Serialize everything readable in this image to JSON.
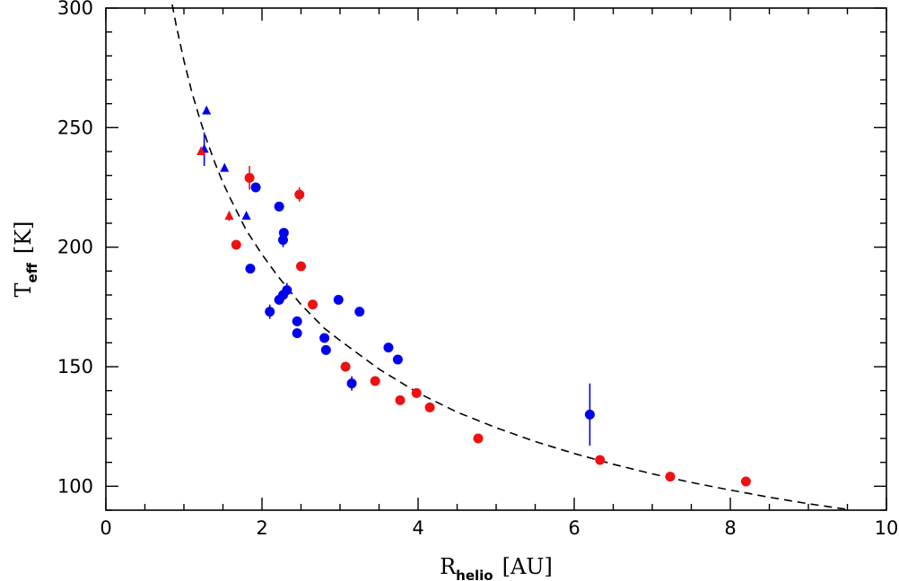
{
  "chart_data": {
    "type": "scatter",
    "title": "",
    "xlabel": {
      "main": "R",
      "sub": "helio",
      "unit": "[AU]"
    },
    "ylabel": {
      "main": "T",
      "sub": "eff",
      "unit": "[K]"
    },
    "xlim": [
      0,
      10
    ],
    "ylim": [
      90,
      300
    ],
    "x_ticks": [
      0,
      2,
      4,
      6,
      8,
      10
    ],
    "y_ticks": [
      100,
      150,
      200,
      250,
      300
    ],
    "grid": false,
    "legend": "none",
    "colors": {
      "blue": "#0000ee",
      "red": "#ee1111",
      "curve": "#000000"
    },
    "series": [
      {
        "marker": "circle",
        "color": "blue",
        "points": [
          {
            "x": 1.92,
            "y": 225,
            "err": 2
          },
          {
            "x": 1.85,
            "y": 191,
            "err": 0
          },
          {
            "x": 2.22,
            "y": 217,
            "err": 0
          },
          {
            "x": 2.28,
            "y": 206,
            "err": 0
          },
          {
            "x": 2.27,
            "y": 203,
            "err": 3
          },
          {
            "x": 2.1,
            "y": 173,
            "err": 3
          },
          {
            "x": 2.22,
            "y": 178,
            "err": 2
          },
          {
            "x": 2.27,
            "y": 180,
            "err": 2
          },
          {
            "x": 2.32,
            "y": 182,
            "err": 3
          },
          {
            "x": 2.45,
            "y": 169,
            "err": 0
          },
          {
            "x": 2.45,
            "y": 164,
            "err": 0
          },
          {
            "x": 2.8,
            "y": 162,
            "err": 0
          },
          {
            "x": 2.82,
            "y": 157,
            "err": 0
          },
          {
            "x": 2.98,
            "y": 178,
            "err": 0
          },
          {
            "x": 3.15,
            "y": 143,
            "err": 3
          },
          {
            "x": 3.25,
            "y": 173,
            "err": 0
          },
          {
            "x": 3.62,
            "y": 158,
            "err": 0
          },
          {
            "x": 3.74,
            "y": 153,
            "err": 0
          },
          {
            "x": 6.2,
            "y": 130,
            "err": 13
          }
        ]
      },
      {
        "marker": "circle",
        "color": "red",
        "points": [
          {
            "x": 1.84,
            "y": 229,
            "err": 5
          },
          {
            "x": 1.67,
            "y": 201,
            "err": 0
          },
          {
            "x": 2.48,
            "y": 222,
            "err": 3
          },
          {
            "x": 2.5,
            "y": 192,
            "err": 0
          },
          {
            "x": 2.65,
            "y": 176,
            "err": 0
          },
          {
            "x": 3.07,
            "y": 150,
            "err": 0
          },
          {
            "x": 3.45,
            "y": 144,
            "err": 0
          },
          {
            "x": 3.77,
            "y": 136,
            "err": 0
          },
          {
            "x": 3.98,
            "y": 139,
            "err": 2
          },
          {
            "x": 4.15,
            "y": 133,
            "err": 2
          },
          {
            "x": 4.77,
            "y": 120,
            "err": 0
          },
          {
            "x": 6.33,
            "y": 111,
            "err": 0
          },
          {
            "x": 7.23,
            "y": 104,
            "err": 0
          },
          {
            "x": 8.2,
            "y": 102,
            "err": 0
          }
        ]
      },
      {
        "marker": "triangle",
        "color": "blue",
        "points": [
          {
            "x": 1.29,
            "y": 257,
            "err": 0
          },
          {
            "x": 1.26,
            "y": 241,
            "err": 7
          },
          {
            "x": 1.52,
            "y": 233,
            "err": 0
          },
          {
            "x": 1.8,
            "y": 213,
            "err": 0
          }
        ]
      },
      {
        "marker": "triangle",
        "color": "red",
        "points": [
          {
            "x": 1.22,
            "y": 240,
            "err": 0
          },
          {
            "x": 1.58,
            "y": 213,
            "err": 2
          }
        ]
      }
    ],
    "fit_curve": {
      "style": "dashed",
      "x": [
        0.85,
        0.9,
        1.0,
        1.1,
        1.2,
        1.3,
        1.4,
        1.5,
        1.6,
        1.8,
        2.0,
        2.2,
        2.5,
        2.8,
        3.0,
        3.5,
        4.0,
        4.5,
        5.0,
        5.5,
        6.0,
        6.5,
        7.0,
        7.5,
        8.0,
        8.5,
        9.0,
        9.5
      ],
      "y": [
        301.5,
        293,
        278,
        265,
        254,
        244,
        235,
        227,
        220,
        207,
        197,
        188,
        176,
        166,
        161,
        149,
        139,
        131,
        124.5,
        118.7,
        113.7,
        109.2,
        105.2,
        101.6,
        98.4,
        95.4,
        92.7,
        90.3
      ]
    }
  }
}
